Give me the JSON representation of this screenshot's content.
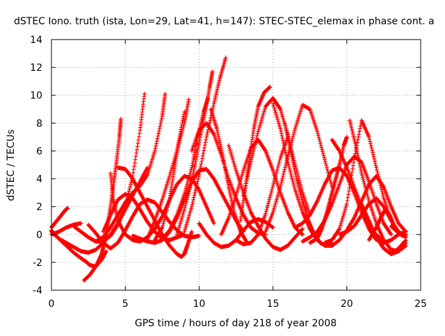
{
  "chart_data": {
    "type": "scatter",
    "title": "dSTEC Iono. truth (ista, Lon=29, Lat=41, h=147): STEC-STEC_elemax in phase cont. a",
    "xlabel": "GPS time / hours of day 218 of year 2008",
    "ylabel": "dSTEC  / TECUs",
    "xlim": [
      0,
      25
    ],
    "ylim": [
      -4,
      14
    ],
    "xticks": [
      0,
      5,
      10,
      15,
      20,
      25
    ],
    "yticks": [
      -4,
      -2,
      0,
      2,
      4,
      6,
      8,
      10,
      12,
      14
    ],
    "grid": true,
    "grid_style": "dotted",
    "marker": "plus",
    "series_color": "#ff0000",
    "series": [
      {
        "x": [
          0.0,
          0.3,
          0.6,
          0.9,
          1.1
        ],
        "y": [
          0.5,
          0.9,
          1.3,
          1.7,
          1.9
        ]
      },
      {
        "x": [
          0.0,
          0.5,
          1.0,
          1.5,
          2.0,
          2.4,
          2.6,
          3.0,
          3.4,
          3.7
        ],
        "y": [
          0.3,
          -0.3,
          -0.8,
          -1.3,
          -1.7,
          -2.0,
          -2.2,
          -2.3,
          -1.8,
          -1.2
        ]
      },
      {
        "x": [
          0.0,
          0.5,
          1.0,
          1.5,
          2.0
        ],
        "y": [
          0.0,
          0.2,
          0.5,
          0.7,
          0.8
        ]
      },
      {
        "x": [
          0.0,
          0.5,
          1.0,
          1.5,
          2.0,
          2.5,
          3.0,
          3.5,
          4.0,
          4.5,
          5.0,
          5.5,
          6.0,
          6.5
        ],
        "y": [
          0.2,
          -0.3,
          -0.6,
          -0.9,
          -1.2,
          -1.3,
          -1.1,
          -0.6,
          0.0,
          0.8,
          1.8,
          2.8,
          3.8,
          4.8
        ]
      },
      {
        "x": [
          2.2,
          2.6,
          3.0,
          3.4,
          3.6,
          3.8,
          4.0,
          4.2,
          4.4,
          4.6,
          4.7
        ],
        "y": [
          -3.3,
          -2.9,
          -2.3,
          -1.4,
          -0.5,
          0.6,
          2.0,
          3.6,
          5.2,
          7.0,
          8.3
        ]
      },
      {
        "x": [
          1.5,
          2.0,
          2.5,
          3.0,
          3.5,
          4.0,
          4.5,
          5.0,
          5.5,
          6.0,
          6.3
        ],
        "y": [
          0.6,
          0.2,
          -0.2,
          -0.5,
          -0.5,
          -0.1,
          0.7,
          2.0,
          4.2,
          7.5,
          10.1
        ]
      },
      {
        "x": [
          2.5,
          3.0,
          3.5,
          4.0,
          4.5,
          5.0,
          5.5,
          6.0,
          6.5,
          7.0,
          7.5,
          8.0,
          8.5,
          9.0,
          9.5,
          10.0
        ],
        "y": [
          0.7,
          0.1,
          -0.6,
          -1.0,
          -0.6,
          0.3,
          1.3,
          2.2,
          2.5,
          2.3,
          1.6,
          0.9,
          0.3,
          -0.1,
          -0.2,
          -0.1
        ]
      },
      {
        "x": [
          3.0,
          3.5,
          4.0,
          4.5,
          5.0,
          5.5,
          6.0,
          6.5,
          7.0,
          7.5,
          7.7
        ],
        "y": [
          -0.5,
          -0.2,
          0.5,
          1.4,
          2.3,
          3.0,
          3.5,
          4.3,
          6.0,
          8.5,
          10.1
        ]
      },
      {
        "x": [
          3.5,
          4.0,
          4.5,
          5.0,
          5.5,
          6.0,
          6.5,
          7.0,
          7.5,
          8.0,
          8.5,
          9.0
        ],
        "y": [
          0.2,
          1.4,
          2.5,
          2.9,
          2.6,
          1.8,
          0.9,
          0.2,
          -0.3,
          -0.4,
          -0.2,
          0.0
        ]
      },
      {
        "x": [
          4.0,
          4.2,
          4.5,
          5.0,
          5.5,
          6.0,
          6.5,
          7.0,
          7.5,
          8.0,
          8.5,
          9.0,
          9.5,
          10.0,
          10.5,
          11.0
        ],
        "y": [
          4.4,
          2.5,
          1.0,
          0.0,
          -0.4,
          -0.5,
          -0.2,
          0.4,
          1.3,
          2.5,
          3.6,
          4.2,
          4.0,
          3.2,
          2.0,
          0.8
        ]
      },
      {
        "x": [
          4.5,
          5.0,
          5.5,
          6.0,
          6.5,
          7.0,
          7.5,
          8.0,
          8.5,
          8.8,
          9.0,
          9.2,
          9.5
        ],
        "y": [
          4.8,
          4.7,
          4.0,
          3.0,
          2.0,
          1.0,
          0.0,
          -0.8,
          -1.4,
          -1.6,
          -1.4,
          -0.8,
          0.2
        ]
      },
      {
        "x": [
          5.5,
          6.0,
          6.5,
          7.0,
          7.5,
          8.0,
          8.5,
          9.0,
          9.5,
          10.0,
          10.5,
          11.0,
          11.5,
          12.0,
          12.5,
          13.0
        ],
        "y": [
          -0.1,
          -0.3,
          -0.5,
          -0.6,
          -0.4,
          0.2,
          1.2,
          2.5,
          3.8,
          4.6,
          4.7,
          4.0,
          3.0,
          2.0,
          1.0,
          0.2
        ]
      },
      {
        "x": [
          6.5,
          7.0,
          7.5,
          8.0,
          8.5,
          9.0,
          9.3
        ],
        "y": [
          -0.3,
          1.0,
          2.5,
          4.2,
          6.0,
          8.0,
          9.7
        ]
      },
      {
        "x": [
          7.0,
          7.5,
          8.0,
          8.3,
          8.6,
          9.0
        ],
        "y": [
          -0.4,
          0.5,
          2.5,
          4.6,
          6.6,
          8.8
        ]
      },
      {
        "x": [
          7.5,
          8.0,
          8.5,
          9.0,
          9.5,
          9.9,
          10.3,
          10.6
        ],
        "y": [
          -0.3,
          0.3,
          1.4,
          2.9,
          4.8,
          7.0,
          8.8,
          9.8
        ]
      },
      {
        "x": [
          8.5,
          9.0,
          9.5,
          9.8,
          10.1,
          10.4,
          10.7,
          10.9
        ],
        "y": [
          0.0,
          1.8,
          3.8,
          5.5,
          7.2,
          8.8,
          10.5,
          11.7
        ]
      },
      {
        "x": [
          9.0,
          9.5,
          10.0,
          10.5,
          11.0,
          11.4,
          11.8
        ],
        "y": [
          0.2,
          2.0,
          4.3,
          7.0,
          9.4,
          11.2,
          12.7
        ]
      },
      {
        "x": [
          9.5,
          10.0,
          10.5,
          11.0,
          11.5,
          12.0,
          12.5,
          13.0,
          13.5,
          14.0,
          14.5
        ],
        "y": [
          6.0,
          7.5,
          8.0,
          7.2,
          5.7,
          4.0,
          2.6,
          1.4,
          0.5,
          0.1,
          0.0
        ]
      },
      {
        "x": [
          10.0,
          10.5,
          11.0,
          11.5,
          12.0,
          12.5,
          13.0,
          13.5,
          14.0,
          14.5,
          15.0
        ],
        "y": [
          0.8,
          0.0,
          -0.6,
          -0.9,
          -0.8,
          -0.4,
          0.3,
          0.9,
          1.1,
          0.9,
          0.5
        ]
      },
      {
        "x": [
          10.8,
          11.2,
          11.6,
          12.0,
          12.4,
          12.8,
          13.2
        ],
        "y": [
          9.0,
          7.6,
          5.6,
          3.4,
          1.5,
          0.2,
          -0.5
        ]
      },
      {
        "x": [
          12.0,
          12.5,
          13.0,
          13.5,
          14.0,
          14.5,
          15.0,
          15.5,
          16.0,
          16.5,
          17.0
        ],
        "y": [
          6.4,
          4.6,
          3.0,
          1.6,
          0.6,
          -0.3,
          -0.9,
          -1.1,
          -0.8,
          -0.2,
          0.4
        ]
      },
      {
        "x": [
          12.5,
          13.0,
          13.5,
          14.0,
          14.5,
          15.0,
          15.5,
          16.0
        ],
        "y": [
          -0.4,
          -0.7,
          -0.6,
          0.0,
          1.5,
          3.5,
          5.5,
          7.0
        ]
      },
      {
        "x": [
          11.5,
          12.0,
          12.5,
          13.0,
          13.5,
          14.0,
          14.5,
          15.0,
          15.5,
          16.0,
          16.5,
          17.0
        ],
        "y": [
          0.0,
          1.2,
          2.8,
          4.6,
          6.2,
          6.8,
          6.0,
          4.6,
          3.0,
          1.6,
          0.5,
          0.0
        ]
      },
      {
        "x": [
          13.0,
          13.5,
          14.0,
          14.5,
          15.0,
          15.5,
          16.0,
          16.5,
          17.0,
          17.5
        ],
        "y": [
          2.8,
          5.2,
          7.4,
          9.2,
          9.8,
          9.0,
          7.2,
          5.0,
          3.0,
          1.4
        ]
      },
      {
        "x": [
          12.8,
          13.1,
          13.4,
          13.7,
          14.0,
          14.4,
          14.8
        ],
        "y": [
          1.0,
          3.2,
          5.4,
          7.6,
          9.2,
          10.2,
          10.6
        ]
      },
      {
        "x": [
          14.5,
          15.0,
          15.5,
          16.0,
          16.5,
          17.0,
          17.5,
          18.0,
          18.5,
          19.0
        ],
        "y": [
          0.2,
          1.6,
          3.4,
          5.6,
          7.6,
          9.3,
          9.0,
          7.4,
          5.4,
          3.4
        ]
      },
      {
        "x": [
          15.0,
          15.5,
          16.0,
          16.5,
          17.0,
          17.5,
          18.0,
          18.5,
          19.0,
          19.5,
          20.0
        ],
        "y": [
          9.4,
          7.6,
          5.2,
          3.2,
          1.6,
          0.4,
          -0.4,
          -0.8,
          -0.8,
          -0.4,
          0.3
        ]
      },
      {
        "x": [
          15.8,
          16.2,
          16.6,
          17.0,
          17.4,
          17.8,
          18.2,
          18.6,
          19.0
        ],
        "y": [
          8.0,
          6.0,
          4.0,
          2.4,
          1.0,
          0.0,
          -0.6,
          -0.8,
          -0.6
        ]
      },
      {
        "x": [
          16.5,
          17.0,
          17.5,
          18.0,
          18.5,
          19.0,
          19.5,
          20.0,
          20.5,
          21.0,
          21.5,
          22.0
        ],
        "y": [
          0.5,
          0.8,
          1.4,
          2.4,
          3.6,
          4.6,
          4.8,
          4.2,
          3.0,
          1.6,
          0.4,
          -0.4
        ]
      },
      {
        "x": [
          17.0,
          17.5,
          18.0,
          18.5,
          19.0,
          19.5,
          20.0,
          20.5,
          21.0,
          21.5,
          22.0,
          22.5,
          23.0
        ],
        "y": [
          -0.5,
          -0.2,
          0.2,
          1.0,
          2.2,
          3.6,
          5.0,
          5.6,
          5.2,
          3.8,
          2.2,
          0.8,
          0.0
        ]
      },
      {
        "x": [
          17.5,
          18.0,
          18.3,
          18.6,
          18.9,
          19.2,
          19.5,
          19.8,
          20.0
        ],
        "y": [
          -0.6,
          -0.3,
          0.4,
          1.4,
          2.6,
          3.8,
          5.0,
          6.4,
          7.0
        ]
      },
      {
        "x": [
          18.5,
          19.0,
          19.5,
          20.0,
          20.5,
          21.0,
          21.5,
          22.0,
          22.5,
          23.0
        ],
        "y": [
          -0.6,
          -0.4,
          0.4,
          2.2,
          5.4,
          8.2,
          7.0,
          4.8,
          2.6,
          1.0
        ]
      },
      {
        "x": [
          19.0,
          19.5,
          20.0,
          20.5,
          21.0,
          21.5,
          22.0,
          22.5,
          23.0,
          23.5,
          24.0
        ],
        "y": [
          6.8,
          6.0,
          4.8,
          3.4,
          2.0,
          0.8,
          -0.2,
          -1.0,
          -1.4,
          -1.0,
          -0.4
        ]
      },
      {
        "x": [
          19.5,
          20.0,
          20.5,
          21.0,
          21.5,
          22.0,
          22.5,
          23.0,
          23.5,
          24.0
        ],
        "y": [
          0.0,
          0.2,
          0.6,
          1.4,
          2.2,
          2.6,
          2.0,
          1.0,
          0.2,
          -0.2
        ]
      },
      {
        "x": [
          20.0,
          20.5,
          21.0,
          21.5,
          22.0,
          22.5,
          23.0,
          23.5,
          24.0
        ],
        "y": [
          0.3,
          1.2,
          2.4,
          3.6,
          4.2,
          3.4,
          2.0,
          0.8,
          0.2
        ]
      },
      {
        "x": [
          20.2,
          20.6,
          21.0,
          21.5,
          22.0,
          22.5,
          23.0,
          23.5,
          24.0
        ],
        "y": [
          8.2,
          6.4,
          4.4,
          2.4,
          0.8,
          -0.4,
          -1.1,
          -1.2,
          -0.8
        ]
      },
      {
        "x": [
          21.0,
          21.5,
          22.0,
          22.5,
          23.0,
          23.5,
          24.0
        ],
        "y": [
          2.2,
          1.0,
          -0.2,
          -1.0,
          -1.4,
          -1.2,
          -0.6
        ]
      },
      {
        "x": [
          21.5,
          22.0,
          22.3,
          22.6,
          22.9,
          23.2,
          23.5,
          23.8,
          24.0
        ],
        "y": [
          -0.4,
          0.5,
          1.2,
          1.8,
          1.4,
          0.6,
          0.1,
          -0.1,
          0.0
        ]
      },
      {
        "x": [
          22.0,
          22.5,
          23.0,
          23.5,
          24.0
        ],
        "y": [
          0.0,
          -0.6,
          -0.4,
          0.0,
          0.2
        ]
      },
      {
        "x": [
          23.0,
          23.3,
          23.6,
          24.0
        ],
        "y": [
          0.6,
          0.3,
          0.1,
          0.0
        ]
      }
    ]
  }
}
